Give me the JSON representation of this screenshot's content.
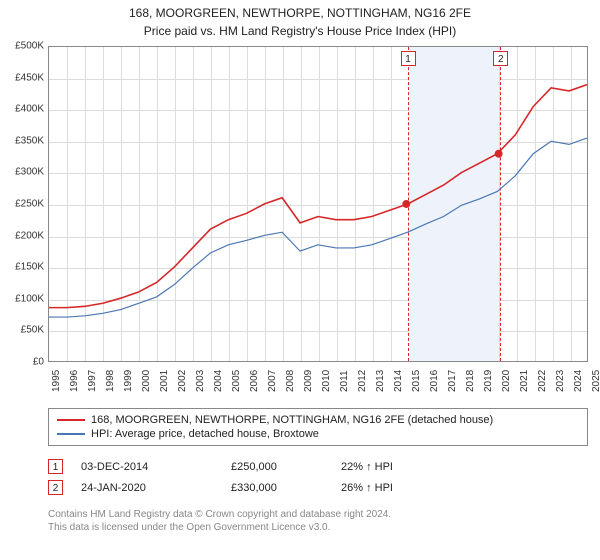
{
  "title": "168, MOORGREEN, NEWTHORPE, NOTTINGHAM, NG16 2FE",
  "subtitle": "Price paid vs. HM Land Registry's House Price Index (HPI)",
  "chart": {
    "type": "line",
    "ylim": [
      0,
      500000
    ],
    "ytick_step": 50000,
    "y_labels": [
      "£0",
      "£50K",
      "£100K",
      "£150K",
      "£200K",
      "£250K",
      "£300K",
      "£350K",
      "£400K",
      "£450K",
      "£500K"
    ],
    "x_years": [
      1995,
      1996,
      1997,
      1998,
      1999,
      2000,
      2001,
      2002,
      2003,
      2004,
      2005,
      2006,
      2007,
      2008,
      2009,
      2010,
      2011,
      2012,
      2013,
      2014,
      2015,
      2016,
      2017,
      2018,
      2019,
      2020,
      2021,
      2022,
      2023,
      2024,
      2025
    ],
    "background_color": "#ffffff",
    "grid_color": "#dcdcdc",
    "border_color": "#888888",
    "shaded_band": {
      "from": 2015,
      "to": 2020,
      "color": "#eef3fb"
    },
    "series": [
      {
        "key": "property",
        "label": "168, MOORGREEN, NEWTHORPE, NOTTINGHAM, NG16 2FE (detached house)",
        "color": "#d62728",
        "line_width": 1.6,
        "data": [
          [
            1995,
            85000
          ],
          [
            1996,
            85000
          ],
          [
            1997,
            87000
          ],
          [
            1998,
            92000
          ],
          [
            1999,
            100000
          ],
          [
            2000,
            110000
          ],
          [
            2001,
            125000
          ],
          [
            2002,
            150000
          ],
          [
            2003,
            180000
          ],
          [
            2004,
            210000
          ],
          [
            2005,
            225000
          ],
          [
            2006,
            235000
          ],
          [
            2007,
            250000
          ],
          [
            2008,
            260000
          ],
          [
            2009,
            220000
          ],
          [
            2010,
            230000
          ],
          [
            2011,
            225000
          ],
          [
            2012,
            225000
          ],
          [
            2013,
            230000
          ],
          [
            2014,
            240000
          ],
          [
            2015,
            250000
          ],
          [
            2016,
            265000
          ],
          [
            2017,
            280000
          ],
          [
            2018,
            300000
          ],
          [
            2019,
            315000
          ],
          [
            2020,
            330000
          ],
          [
            2021,
            360000
          ],
          [
            2022,
            405000
          ],
          [
            2023,
            435000
          ],
          [
            2024,
            430000
          ],
          [
            2025,
            440000
          ]
        ]
      },
      {
        "key": "hpi",
        "label": "HPI: Average price, detached house, Broxtowe",
        "color": "#4a77b4",
        "line_width": 1.2,
        "data": [
          [
            1995,
            70000
          ],
          [
            1996,
            70000
          ],
          [
            1997,
            72000
          ],
          [
            1998,
            76000
          ],
          [
            1999,
            82000
          ],
          [
            2000,
            92000
          ],
          [
            2001,
            102000
          ],
          [
            2002,
            122000
          ],
          [
            2003,
            148000
          ],
          [
            2004,
            172000
          ],
          [
            2005,
            185000
          ],
          [
            2006,
            192000
          ],
          [
            2007,
            200000
          ],
          [
            2008,
            205000
          ],
          [
            2009,
            175000
          ],
          [
            2010,
            185000
          ],
          [
            2011,
            180000
          ],
          [
            2012,
            180000
          ],
          [
            2013,
            185000
          ],
          [
            2014,
            195000
          ],
          [
            2015,
            205000
          ],
          [
            2016,
            218000
          ],
          [
            2017,
            230000
          ],
          [
            2018,
            248000
          ],
          [
            2019,
            258000
          ],
          [
            2020,
            270000
          ],
          [
            2021,
            295000
          ],
          [
            2022,
            330000
          ],
          [
            2023,
            350000
          ],
          [
            2024,
            345000
          ],
          [
            2025,
            355000
          ]
        ]
      }
    ],
    "markers": [
      {
        "id": "1",
        "year": 2014.92,
        "y": 250000
      },
      {
        "id": "2",
        "year": 2020.07,
        "y": 330000
      }
    ]
  },
  "legend": {
    "rows": [
      {
        "color": "#d62728",
        "label": "168, MOORGREEN, NEWTHORPE, NOTTINGHAM, NG16 2FE (detached house)"
      },
      {
        "color": "#4a77b4",
        "label": "HPI: Average price, detached house, Broxtowe"
      }
    ]
  },
  "transactions": [
    {
      "id": "1",
      "date": "03-DEC-2014",
      "price": "£250,000",
      "pct": "22% ↑ HPI"
    },
    {
      "id": "2",
      "date": "24-JAN-2020",
      "price": "£330,000",
      "pct": "26% ↑ HPI"
    }
  ],
  "footer": {
    "line1": "Contains HM Land Registry data © Crown copyright and database right 2024.",
    "line2": "This data is licensed under the Open Government Licence v3.0."
  }
}
